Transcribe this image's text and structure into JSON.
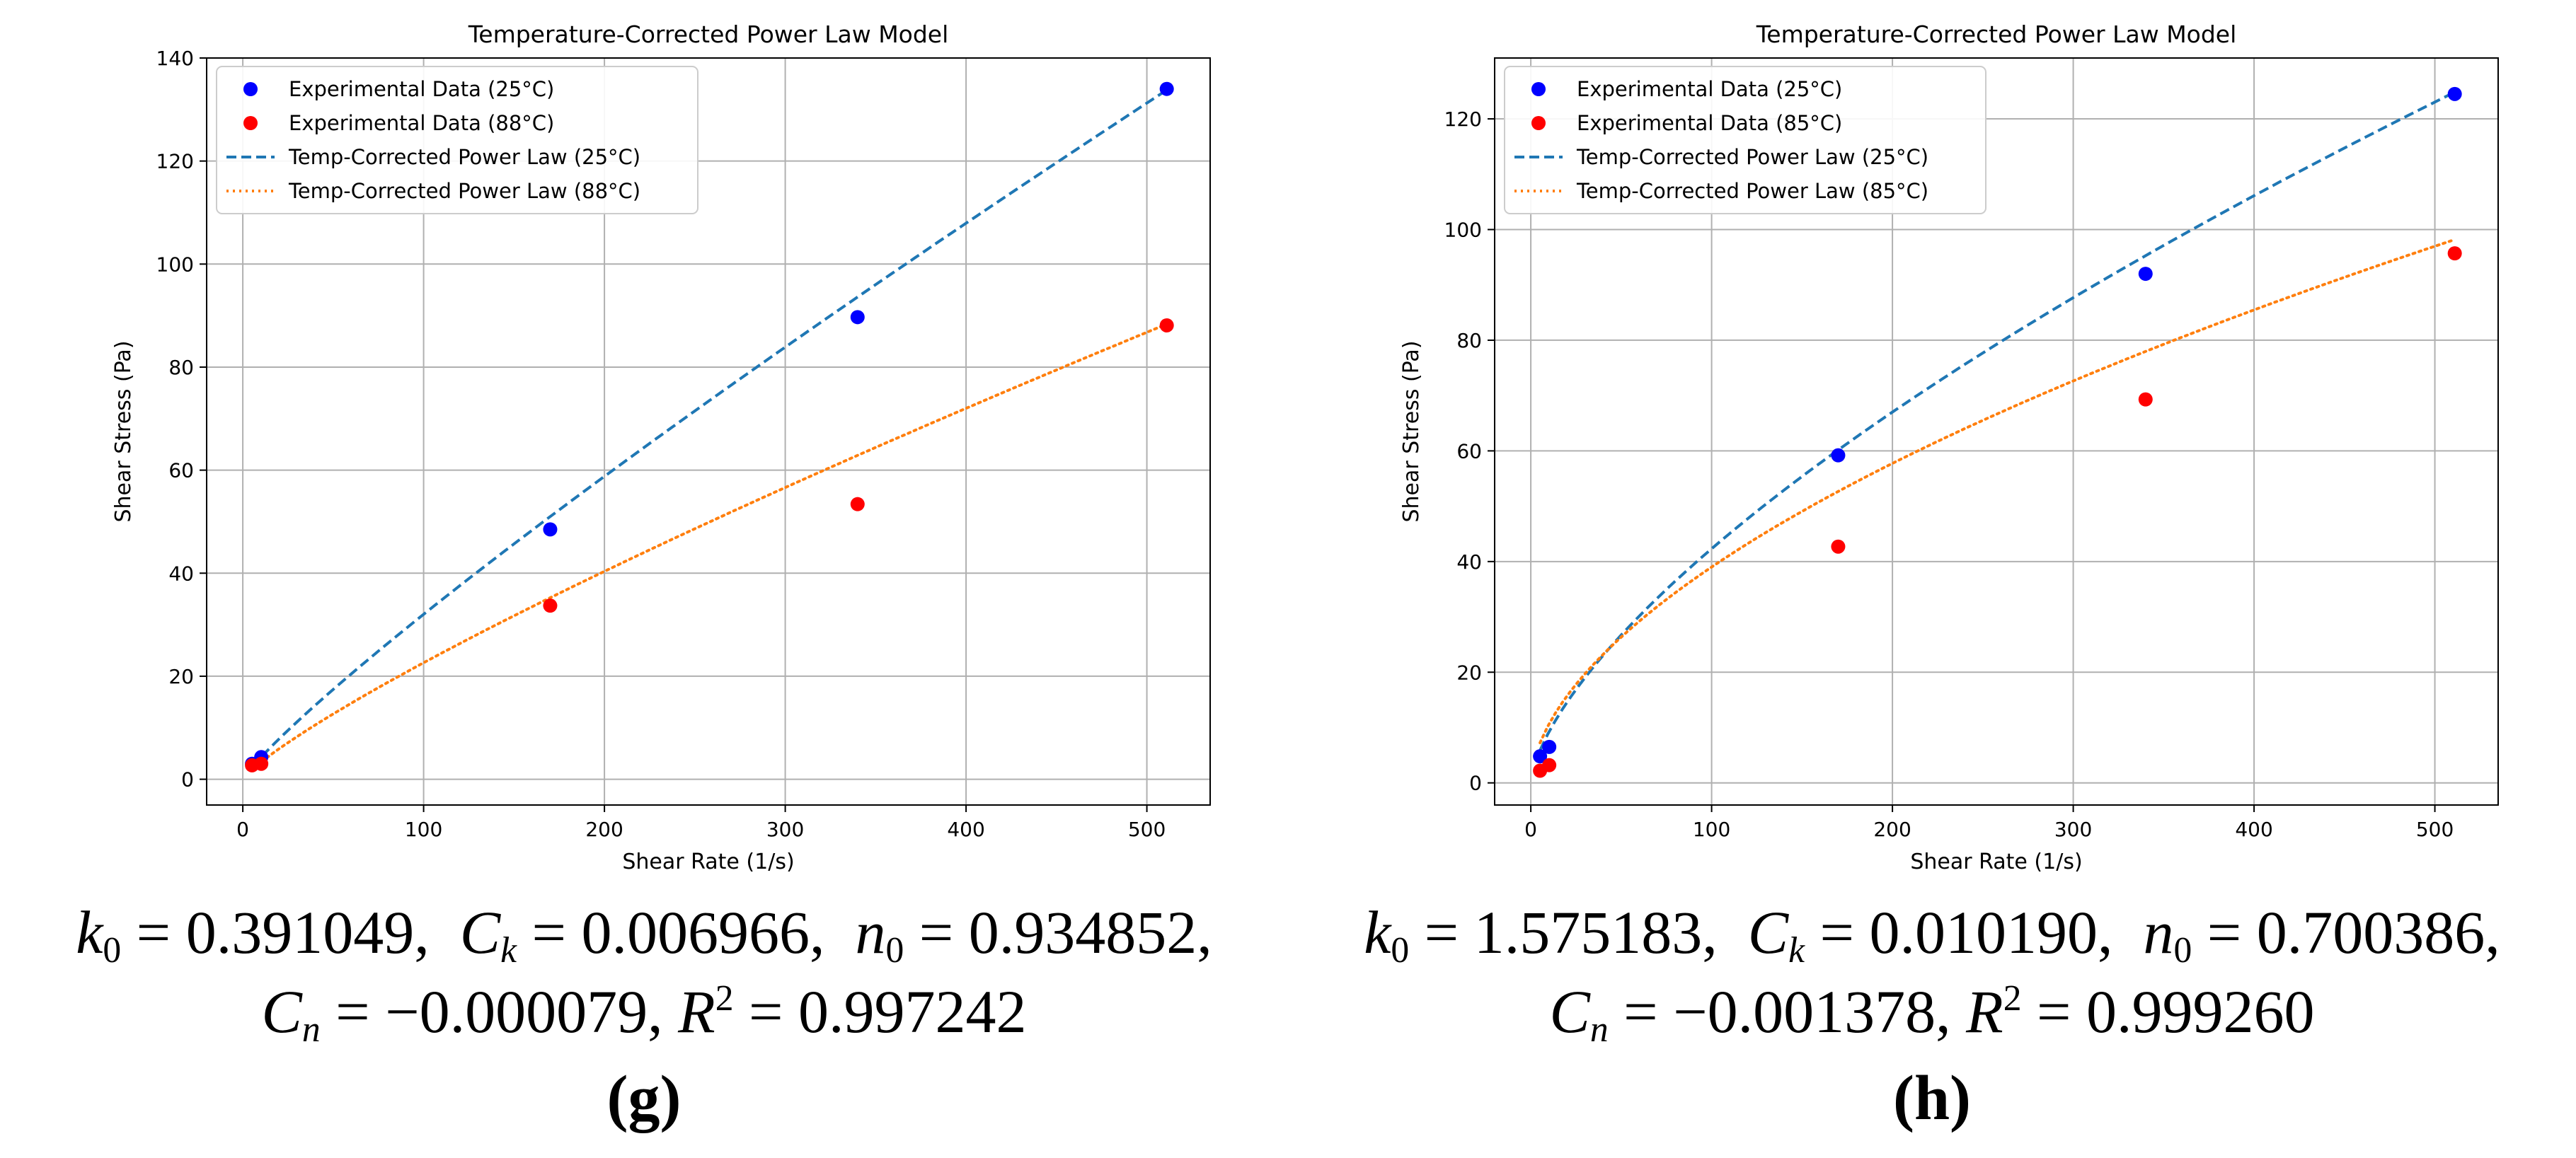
{
  "chart_data": [
    {
      "type": "scatter",
      "title": "Temperature-Corrected Power Law Model",
      "xlabel": "Shear Rate (1/s)",
      "ylabel": "Shear Stress (Pa)",
      "xlim": [
        -20,
        535
      ],
      "ylim": [
        -5,
        140
      ],
      "xticks": [
        0,
        100,
        200,
        300,
        400,
        500
      ],
      "yticks": [
        0,
        20,
        40,
        60,
        80,
        100,
        120,
        140
      ],
      "grid": true,
      "legend_position": "top-left",
      "series": [
        {
          "name": "Experimental Data (25°C)",
          "kind": "scatter",
          "color": "#0000ff",
          "points": [
            [
              5.1,
              3.0
            ],
            [
              10.2,
              4.3
            ],
            [
              170,
              48.5
            ],
            [
              340,
              89.7
            ],
            [
              511,
              134
            ]
          ]
        },
        {
          "name": "Experimental Data (88°C)",
          "kind": "scatter",
          "color": "#ff0000",
          "points": [
            [
              5.1,
              2.7
            ],
            [
              10.2,
              3.0
            ],
            [
              170,
              33.7
            ],
            [
              340,
              53.4
            ],
            [
              511,
              88.1
            ]
          ]
        },
        {
          "name": "Temp-Corrected Power Law (25°C)",
          "kind": "line",
          "style": "dashed",
          "color": "#1f77b4",
          "model": {
            "k": 0.5652,
            "n": 0.8766
          },
          "x_range": [
            5.1,
            511
          ]
        },
        {
          "name": "Temp-Corrected Power Law (88°C)",
          "kind": "line",
          "style": "dotted",
          "color": "#ff7f0e",
          "model": {
            "k": 0.4829,
            "n": 0.8353
          },
          "x_range": [
            5.1,
            511
          ]
        }
      ],
      "caption": {
        "line1": {
          "k0": "0.391049",
          "ck": "0.006966",
          "n0": "0.934852,"
        },
        "line2": {
          "cn": "−0.000079,",
          "r2": "0.997242"
        },
        "panel": "(g)"
      }
    },
    {
      "type": "scatter",
      "title": "Temperature-Corrected Power Law Model",
      "xlabel": "Shear Rate (1/s)",
      "ylabel": "Shear Stress (Pa)",
      "xlim": [
        -20,
        535
      ],
      "ylim": [
        -4,
        131
      ],
      "xticks": [
        0,
        100,
        200,
        300,
        400,
        500
      ],
      "yticks": [
        0,
        20,
        40,
        60,
        80,
        100,
        120
      ],
      "grid": true,
      "legend_position": "top-left",
      "series": [
        {
          "name": "Experimental Data (25°C)",
          "kind": "scatter",
          "color": "#0000ff",
          "points": [
            [
              5.1,
              4.8
            ],
            [
              10.2,
              6.5
            ],
            [
              170,
              59.2
            ],
            [
              340,
              92.0
            ],
            [
              511,
              124.5
            ]
          ]
        },
        {
          "name": "Experimental Data (85°C)",
          "kind": "scatter",
          "color": "#ff0000",
          "points": [
            [
              5.1,
              2.2
            ],
            [
              10.2,
              3.2
            ],
            [
              170,
              42.7
            ],
            [
              340,
              69.3
            ],
            [
              511,
              95.7
            ]
          ]
        },
        {
          "name": "Temp-Corrected Power Law (25°C)",
          "kind": "line",
          "style": "dashed",
          "color": "#1f77b4",
          "model": {
            "k": 1.9957,
            "n": 0.6632
          },
          "x_range": [
            5.1,
            511
          ]
        },
        {
          "name": "Temp-Corrected Power Law (85°C)",
          "kind": "line",
          "style": "dotted",
          "color": "#ff7f0e",
          "model": {
            "k": 2.8797,
            "n": 0.5659
          },
          "x_range": [
            5.1,
            511
          ]
        }
      ],
      "caption": {
        "line1": {
          "k0": "1.575183",
          "ck": "0.010190",
          "n0": "0.700386,"
        },
        "line2": {
          "cn": "−0.001378,",
          "r2": "0.999260"
        },
        "panel": "(h)"
      }
    }
  ]
}
